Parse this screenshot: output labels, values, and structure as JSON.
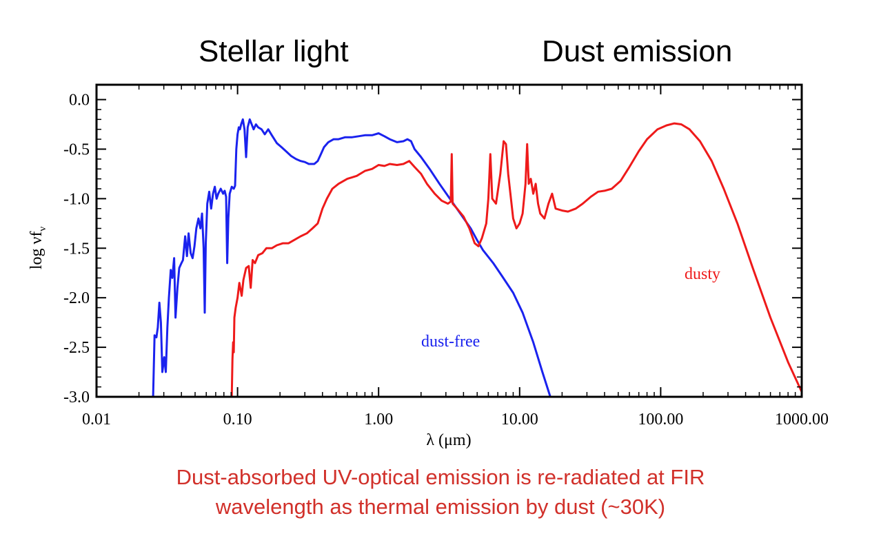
{
  "headings": {
    "left": "Stellar light",
    "right": "Dust emission"
  },
  "caption": {
    "line1": "Dust-absorbed UV-optical emission is re-radiated at FIR",
    "line2": "wavelength as thermal emission by dust (~30K)",
    "color": "#d1302a"
  },
  "chart_data": {
    "type": "line",
    "title": "",
    "xlabel": "λ (μm)",
    "ylabel": "log νf",
    "ylabel_subscript": "ν",
    "x_scale": "log",
    "xlim": [
      0.01,
      1000
    ],
    "ylim": [
      -3.0,
      0.15
    ],
    "x_ticks": [
      0.01,
      0.1,
      1,
      10,
      100,
      1000
    ],
    "x_tick_labels": [
      "0.01",
      "0.10",
      "1.00",
      "10.00",
      "100.00",
      "1000.00"
    ],
    "y_ticks": [
      0.0,
      -0.5,
      -1.0,
      -1.5,
      -2.0,
      -2.5,
      -3.0
    ],
    "y_tick_labels": [
      "0.0",
      "-0.5",
      "-1.0",
      "-1.5",
      "-2.0",
      "-2.5",
      "-3.0"
    ],
    "grid": false,
    "series": [
      {
        "label": "dust-free",
        "color": "#1a22ee",
        "points": [
          [
            0.0252,
            -3.0
          ],
          [
            0.0258,
            -2.38
          ],
          [
            0.0266,
            -2.4
          ],
          [
            0.0272,
            -2.3
          ],
          [
            0.0279,
            -2.05
          ],
          [
            0.0286,
            -2.25
          ],
          [
            0.0293,
            -2.75
          ],
          [
            0.0302,
            -2.6
          ],
          [
            0.031,
            -2.75
          ],
          [
            0.0318,
            -2.3
          ],
          [
            0.0326,
            -2.0
          ],
          [
            0.0336,
            -1.72
          ],
          [
            0.0345,
            -1.8
          ],
          [
            0.0355,
            -1.6
          ],
          [
            0.0363,
            -2.2
          ],
          [
            0.0375,
            -1.9
          ],
          [
            0.0386,
            -1.7
          ],
          [
            0.04,
            -1.65
          ],
          [
            0.041,
            -1.62
          ],
          [
            0.0425,
            -1.38
          ],
          [
            0.0438,
            -1.58
          ],
          [
            0.045,
            -1.35
          ],
          [
            0.0465,
            -1.55
          ],
          [
            0.048,
            -1.6
          ],
          [
            0.0495,
            -1.48
          ],
          [
            0.051,
            -1.3
          ],
          [
            0.0528,
            -1.2
          ],
          [
            0.0545,
            -1.3
          ],
          [
            0.056,
            -1.15
          ],
          [
            0.0575,
            -1.5
          ],
          [
            0.0585,
            -2.15
          ],
          [
            0.0595,
            -1.45
          ],
          [
            0.061,
            -1.05
          ],
          [
            0.063,
            -0.93
          ],
          [
            0.065,
            -1.1
          ],
          [
            0.067,
            -0.95
          ],
          [
            0.069,
            -0.88
          ],
          [
            0.071,
            -1.0
          ],
          [
            0.073,
            -0.95
          ],
          [
            0.076,
            -0.9
          ],
          [
            0.079,
            -0.95
          ],
          [
            0.081,
            -0.92
          ],
          [
            0.083,
            -0.98
          ],
          [
            0.0845,
            -1.65
          ],
          [
            0.086,
            -1.2
          ],
          [
            0.088,
            -0.95
          ],
          [
            0.091,
            -0.88
          ],
          [
            0.094,
            -0.9
          ],
          [
            0.096,
            -0.87
          ],
          [
            0.098,
            -0.5
          ],
          [
            0.1,
            -0.35
          ],
          [
            0.102,
            -0.28
          ],
          [
            0.104,
            -0.3
          ],
          [
            0.106,
            -0.25
          ],
          [
            0.109,
            -0.2
          ],
          [
            0.112,
            -0.3
          ],
          [
            0.115,
            -0.58
          ],
          [
            0.118,
            -0.28
          ],
          [
            0.122,
            -0.2
          ],
          [
            0.126,
            -0.25
          ],
          [
            0.13,
            -0.3
          ],
          [
            0.135,
            -0.25
          ],
          [
            0.14,
            -0.28
          ],
          [
            0.148,
            -0.3
          ],
          [
            0.156,
            -0.35
          ],
          [
            0.165,
            -0.3
          ],
          [
            0.175,
            -0.36
          ],
          [
            0.19,
            -0.44
          ],
          [
            0.205,
            -0.48
          ],
          [
            0.22,
            -0.52
          ],
          [
            0.24,
            -0.57
          ],
          [
            0.26,
            -0.6
          ],
          [
            0.28,
            -0.62
          ],
          [
            0.3,
            -0.63
          ],
          [
            0.32,
            -0.65
          ],
          [
            0.35,
            -0.65
          ],
          [
            0.37,
            -0.62
          ],
          [
            0.39,
            -0.55
          ],
          [
            0.41,
            -0.48
          ],
          [
            0.44,
            -0.43
          ],
          [
            0.48,
            -0.4
          ],
          [
            0.52,
            -0.4
          ],
          [
            0.58,
            -0.38
          ],
          [
            0.65,
            -0.38
          ],
          [
            0.72,
            -0.37
          ],
          [
            0.8,
            -0.36
          ],
          [
            0.9,
            -0.36
          ],
          [
            1.0,
            -0.34
          ],
          [
            1.1,
            -0.37
          ],
          [
            1.2,
            -0.4
          ],
          [
            1.35,
            -0.43
          ],
          [
            1.5,
            -0.42
          ],
          [
            1.6,
            -0.4
          ],
          [
            1.7,
            -0.42
          ],
          [
            1.8,
            -0.5
          ],
          [
            2.0,
            -0.58
          ],
          [
            2.3,
            -0.7
          ],
          [
            2.7,
            -0.85
          ],
          [
            3.2,
            -1.0
          ],
          [
            3.8,
            -1.15
          ],
          [
            4.5,
            -1.3
          ],
          [
            5.0,
            -1.42
          ],
          [
            5.5,
            -1.52
          ],
          [
            6.5,
            -1.65
          ],
          [
            7.5,
            -1.78
          ],
          [
            9.0,
            -1.95
          ],
          [
            10.5,
            -2.15
          ],
          [
            12.5,
            -2.45
          ],
          [
            14.5,
            -2.75
          ],
          [
            16.5,
            -3.0
          ]
        ]
      },
      {
        "label": "dusty",
        "color": "#ee1a1a",
        "points": [
          [
            0.091,
            -3.0
          ],
          [
            0.092,
            -2.62
          ],
          [
            0.093,
            -2.45
          ],
          [
            0.094,
            -2.55
          ],
          [
            0.095,
            -2.2
          ],
          [
            0.097,
            -2.1
          ],
          [
            0.1,
            -2.0
          ],
          [
            0.103,
            -1.85
          ],
          [
            0.107,
            -1.98
          ],
          [
            0.11,
            -1.82
          ],
          [
            0.115,
            -1.7
          ],
          [
            0.12,
            -1.68
          ],
          [
            0.124,
            -1.9
          ],
          [
            0.128,
            -1.62
          ],
          [
            0.133,
            -1.65
          ],
          [
            0.14,
            -1.57
          ],
          [
            0.15,
            -1.55
          ],
          [
            0.16,
            -1.5
          ],
          [
            0.175,
            -1.5
          ],
          [
            0.19,
            -1.47
          ],
          [
            0.21,
            -1.45
          ],
          [
            0.23,
            -1.45
          ],
          [
            0.25,
            -1.42
          ],
          [
            0.28,
            -1.38
          ],
          [
            0.31,
            -1.35
          ],
          [
            0.34,
            -1.3
          ],
          [
            0.37,
            -1.25
          ],
          [
            0.4,
            -1.1
          ],
          [
            0.43,
            -1.0
          ],
          [
            0.47,
            -0.9
          ],
          [
            0.52,
            -0.85
          ],
          [
            0.6,
            -0.8
          ],
          [
            0.7,
            -0.77
          ],
          [
            0.8,
            -0.72
          ],
          [
            0.9,
            -0.7
          ],
          [
            1.0,
            -0.66
          ],
          [
            1.1,
            -0.67
          ],
          [
            1.2,
            -0.65
          ],
          [
            1.35,
            -0.66
          ],
          [
            1.5,
            -0.65
          ],
          [
            1.65,
            -0.62
          ],
          [
            1.8,
            -0.68
          ],
          [
            2.0,
            -0.75
          ],
          [
            2.2,
            -0.85
          ],
          [
            2.5,
            -0.95
          ],
          [
            2.8,
            -1.02
          ],
          [
            3.1,
            -1.05
          ],
          [
            3.25,
            -1.03
          ],
          [
            3.3,
            -0.55
          ],
          [
            3.35,
            -1.05
          ],
          [
            3.6,
            -1.1
          ],
          [
            4.0,
            -1.18
          ],
          [
            4.4,
            -1.3
          ],
          [
            4.8,
            -1.45
          ],
          [
            5.1,
            -1.48
          ],
          [
            5.4,
            -1.4
          ],
          [
            5.8,
            -1.25
          ],
          [
            6.0,
            -1.0
          ],
          [
            6.2,
            -0.55
          ],
          [
            6.4,
            -1.0
          ],
          [
            6.8,
            -1.05
          ],
          [
            7.3,
            -0.75
          ],
          [
            7.7,
            -0.42
          ],
          [
            8.0,
            -0.45
          ],
          [
            8.3,
            -0.75
          ],
          [
            8.6,
            -0.95
          ],
          [
            9.0,
            -1.2
          ],
          [
            9.5,
            -1.3
          ],
          [
            10.0,
            -1.25
          ],
          [
            10.5,
            -1.15
          ],
          [
            11.0,
            -0.85
          ],
          [
            11.3,
            -0.45
          ],
          [
            11.6,
            -0.85
          ],
          [
            12.0,
            -0.8
          ],
          [
            12.5,
            -0.95
          ],
          [
            13.0,
            -0.85
          ],
          [
            13.5,
            -1.05
          ],
          [
            14.0,
            -1.15
          ],
          [
            15.0,
            -1.2
          ],
          [
            16.0,
            -1.05
          ],
          [
            17.0,
            -0.95
          ],
          [
            18.0,
            -1.1
          ],
          [
            20.0,
            -1.12
          ],
          [
            22.0,
            -1.13
          ],
          [
            25.0,
            -1.1
          ],
          [
            28.0,
            -1.05
          ],
          [
            32.0,
            -0.98
          ],
          [
            36.0,
            -0.93
          ],
          [
            40.0,
            -0.92
          ],
          [
            45.0,
            -0.9
          ],
          [
            52.0,
            -0.82
          ],
          [
            60.0,
            -0.68
          ],
          [
            70.0,
            -0.52
          ],
          [
            80.0,
            -0.4
          ],
          [
            95.0,
            -0.3
          ],
          [
            110.0,
            -0.26
          ],
          [
            125.0,
            -0.24
          ],
          [
            140.0,
            -0.25
          ],
          [
            160.0,
            -0.3
          ],
          [
            190.0,
            -0.42
          ],
          [
            230.0,
            -0.62
          ],
          [
            280.0,
            -0.9
          ],
          [
            350.0,
            -1.25
          ],
          [
            450.0,
            -1.7
          ],
          [
            600.0,
            -2.2
          ],
          [
            800.0,
            -2.65
          ],
          [
            1000.0,
            -2.95
          ]
        ]
      }
    ]
  }
}
